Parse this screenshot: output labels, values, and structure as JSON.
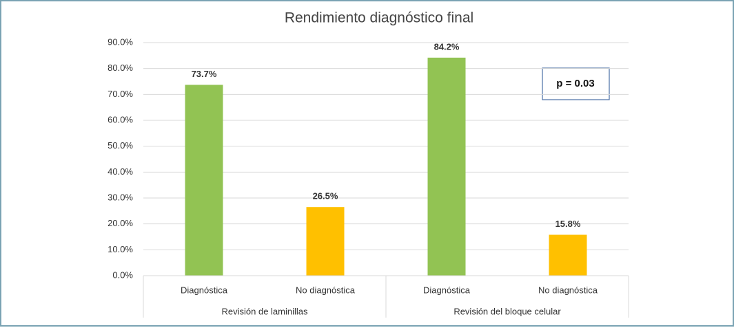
{
  "chart_data": {
    "type": "bar",
    "title": "Rendimiento diagnóstico final",
    "categories": [
      "Diagnóstica",
      "No diagnóstica",
      "Diagnóstica",
      "No diagnóstica"
    ],
    "groups": [
      "Revisión de laminillas",
      "Revisión del bloque celular"
    ],
    "values": [
      73.7,
      26.5,
      84.2,
      15.8
    ],
    "value_labels": [
      "73.7%",
      "26.5%",
      "84.2%",
      "15.8%"
    ],
    "colors": [
      "#92c353",
      "#ffc000",
      "#92c353",
      "#ffc000"
    ],
    "ylim": [
      0,
      90
    ],
    "yticks": [
      {
        "value": 0,
        "label": "0.0%"
      },
      {
        "value": 10,
        "label": "10.0%"
      },
      {
        "value": 20,
        "label": "20.0%"
      },
      {
        "value": 30,
        "label": "30.0%"
      },
      {
        "value": 40,
        "label": "40.0%"
      },
      {
        "value": 50,
        "label": "50.0%"
      },
      {
        "value": 60,
        "label": "60.0%"
      },
      {
        "value": 70,
        "label": "70.0%"
      },
      {
        "value": 80,
        "label": "80.0%"
      },
      {
        "value": 90,
        "label": "90.0%"
      }
    ],
    "grid": true,
    "annotation": "p = 0.03"
  }
}
